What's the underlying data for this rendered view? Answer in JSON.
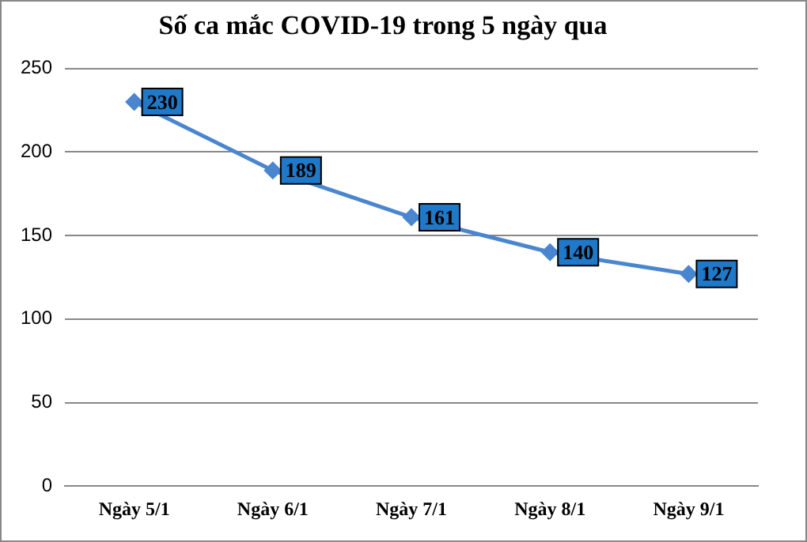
{
  "chart_data": {
    "type": "line",
    "title": "Số ca mắc COVID-19 trong 5 ngày qua",
    "categories": [
      "Ngày 5/1",
      "Ngày 6/1",
      "Ngày 7/1",
      "Ngày 8/1",
      "Ngày 9/1"
    ],
    "values": [
      230,
      189,
      161,
      140,
      127
    ],
    "color": "#4a86d0",
    "ylim": [
      0,
      250
    ],
    "yticks": [
      0,
      50,
      100,
      150,
      200,
      250
    ],
    "grid": "y",
    "legend": false,
    "marker": "diamond",
    "line_style": "solid",
    "data_labels": true
  }
}
